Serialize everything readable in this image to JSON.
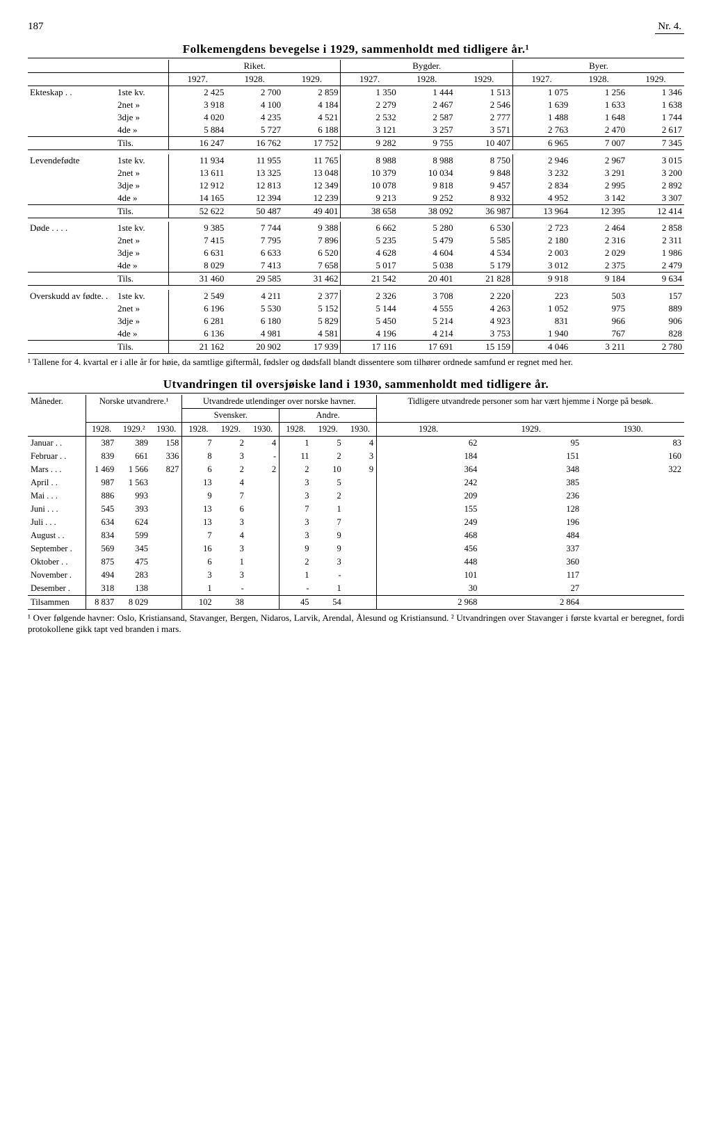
{
  "page": {
    "num": "187",
    "issue": "Nr. 4."
  },
  "t1": {
    "title": "Folkemengdens bevegelse i 1929, sammenholdt med tidligere år.¹",
    "groups": [
      "Riket.",
      "Bygder.",
      "Byer."
    ],
    "years": [
      "1927.",
      "1928.",
      "1929.",
      "1927.",
      "1928.",
      "1929.",
      "1927.",
      "1928.",
      "1929."
    ],
    "rows": [
      {
        "cat": "Ekteskap . .",
        "subs": [
          [
            "1ste kv.",
            "2 425",
            "2 700",
            "2 859",
            "1 350",
            "1 444",
            "1 513",
            "1 075",
            "1 256",
            "1 346"
          ],
          [
            "2net  »",
            "3 918",
            "4 100",
            "4 184",
            "2 279",
            "2 467",
            "2 546",
            "1 639",
            "1 633",
            "1 638"
          ],
          [
            "3dje  »",
            "4 020",
            "4 235",
            "4 521",
            "2 532",
            "2 587",
            "2 777",
            "1 488",
            "1 648",
            "1 744"
          ],
          [
            "4de   »",
            "5 884",
            "5 727",
            "6 188",
            "3 121",
            "3 257",
            "3 571",
            "2 763",
            "2 470",
            "2 617"
          ]
        ],
        "tils": [
          "Tils.",
          "16 247",
          "16 762",
          "17 752",
          "9 282",
          "9 755",
          "10 407",
          "6 965",
          "7 007",
          "7 345"
        ]
      },
      {
        "cat": "Levendefødte",
        "subs": [
          [
            "1ste kv.",
            "11 934",
            "11 955",
            "11 765",
            "8 988",
            "8 988",
            "8 750",
            "2 946",
            "2 967",
            "3 015"
          ],
          [
            "2net  »",
            "13 611",
            "13 325",
            "13 048",
            "10 379",
            "10 034",
            "9 848",
            "3 232",
            "3 291",
            "3 200"
          ],
          [
            "3dje  »",
            "12 912",
            "12 813",
            "12 349",
            "10 078",
            "9 818",
            "9 457",
            "2 834",
            "2 995",
            "2 892"
          ],
          [
            "4de   »",
            "14 165",
            "12 394",
            "12 239",
            "9 213",
            "9 252",
            "8 932",
            "4 952",
            "3 142",
            "3 307"
          ]
        ],
        "tils": [
          "Tils.",
          "52 622",
          "50 487",
          "49 401",
          "38 658",
          "38 092",
          "36 987",
          "13 964",
          "12 395",
          "12 414"
        ]
      },
      {
        "cat": "Døde . . . .",
        "subs": [
          [
            "1ste kv.",
            "9 385",
            "7 744",
            "9 388",
            "6 662",
            "5 280",
            "6 530",
            "2 723",
            "2 464",
            "2 858"
          ],
          [
            "2net  »",
            "7 415",
            "7 795",
            "7 896",
            "5 235",
            "5 479",
            "5 585",
            "2 180",
            "2 316",
            "2 311"
          ],
          [
            "3dje  »",
            "6 631",
            "6 633",
            "6 520",
            "4 628",
            "4 604",
            "4 534",
            "2 003",
            "2 029",
            "1 986"
          ],
          [
            "4de   »",
            "8 029",
            "7 413",
            "7 658",
            "5 017",
            "5 038",
            "5 179",
            "3 012",
            "2 375",
            "2 479"
          ]
        ],
        "tils": [
          "Tils.",
          "31 460",
          "29 585",
          "31 462",
          "21 542",
          "20 401",
          "21 828",
          "9 918",
          "9 184",
          "9 634"
        ]
      },
      {
        "cat": "Overskudd av fødte. .",
        "subs": [
          [
            "1ste kv.",
            "2 549",
            "4 211",
            "2 377",
            "2 326",
            "3 708",
            "2 220",
            "223",
            "503",
            "157"
          ],
          [
            "2net  »",
            "6 196",
            "5 530",
            "5 152",
            "5 144",
            "4 555",
            "4 263",
            "1 052",
            "975",
            "889"
          ],
          [
            "3dje  »",
            "6 281",
            "6 180",
            "5 829",
            "5 450",
            "5 214",
            "4 923",
            "831",
            "966",
            "906"
          ],
          [
            "4de   »",
            "6 136",
            "4 981",
            "4 581",
            "4 196",
            "4 214",
            "3 753",
            "1 940",
            "767",
            "828"
          ]
        ],
        "tils": [
          "Tils.",
          "21 162",
          "20 902",
          "17 939",
          "17 116",
          "17 691",
          "15 159",
          "4 046",
          "3 211",
          "2 780"
        ]
      }
    ],
    "note": "¹ Tallene for 4. kvartal er i alle år for høie, da samtlige giftermål, fødsler og dødsfall blandt dissentere som tilhører ordnede samfund er regnet med her."
  },
  "t2": {
    "title": "Utvandringen til oversjøiske land i 1930, sammenholdt med tidligere år.",
    "head": {
      "maned": "Måneder.",
      "norske": "Norske utvandrere.¹",
      "utlend": "Utvandrede utlendinger over norske havner.",
      "tidl": "Tidligere utvandrede personer som har vært hjemme i Norge på besøk.",
      "sv": "Svensker.",
      "an": "Andre.",
      "yrs_a": [
        "1928.",
        "1929.²",
        "1930."
      ],
      "yrs_b": [
        "1928.",
        "1929.",
        "1930.",
        "1928.",
        "1929.",
        "1930."
      ],
      "yrs_c": [
        "1928.",
        "1929.",
        "1930."
      ]
    },
    "rows": [
      [
        "Januar  . .",
        "387",
        "389",
        "158",
        "7",
        "2",
        "4",
        "1",
        "5",
        "4",
        "62",
        "95",
        "83"
      ],
      [
        "Februar . .",
        "839",
        "661",
        "336",
        "8",
        "3",
        "-",
        "11",
        "2",
        "3",
        "184",
        "151",
        "160"
      ],
      [
        "Mars . . .",
        "1 469",
        "1 566",
        "827",
        "6",
        "2",
        "2",
        "2",
        "10",
        "9",
        "364",
        "348",
        "322"
      ],
      [
        "April . .",
        "987",
        "1 563",
        "",
        "13",
        "4",
        "",
        "3",
        "5",
        "",
        "242",
        "385",
        ""
      ],
      [
        "Mai . . .",
        "886",
        "993",
        "",
        "9",
        "7",
        "",
        "3",
        "2",
        "",
        "209",
        "236",
        ""
      ],
      [
        "Juni . . .",
        "545",
        "393",
        "",
        "13",
        "6",
        "",
        "7",
        "1",
        "",
        "155",
        "128",
        ""
      ],
      [
        "Juli . . .",
        "634",
        "624",
        "",
        "13",
        "3",
        "",
        "3",
        "7",
        "",
        "249",
        "196",
        ""
      ],
      [
        "August . .",
        "834",
        "599",
        "",
        "7",
        "4",
        "",
        "3",
        "9",
        "",
        "468",
        "484",
        ""
      ],
      [
        "September .",
        "569",
        "345",
        "",
        "16",
        "3",
        "",
        "9",
        "9",
        "",
        "456",
        "337",
        ""
      ],
      [
        "Oktober . .",
        "875",
        "475",
        "",
        "6",
        "1",
        "",
        "2",
        "3",
        "",
        "448",
        "360",
        ""
      ],
      [
        "November .",
        "494",
        "283",
        "",
        "3",
        "3",
        "",
        "1",
        "-",
        "",
        "101",
        "117",
        ""
      ],
      [
        "Desember .",
        "318",
        "138",
        "",
        "1",
        "-",
        "",
        "-",
        "1",
        "",
        "30",
        "27",
        ""
      ]
    ],
    "tils": [
      "Tilsammen",
      "8 837",
      "8 029",
      "",
      "102",
      "38",
      "",
      "45",
      "54",
      "",
      "2 968",
      "2 864",
      ""
    ],
    "note": "¹ Over følgende havner: Oslo, Kristiansand, Stavanger, Bergen, Nidaros, Larvik, Arendal, Ålesund og Kristiansund.   ² Utvandringen over Stavanger i første kvartal er beregnet, fordi protokollene gikk tapt ved branden i mars."
  }
}
